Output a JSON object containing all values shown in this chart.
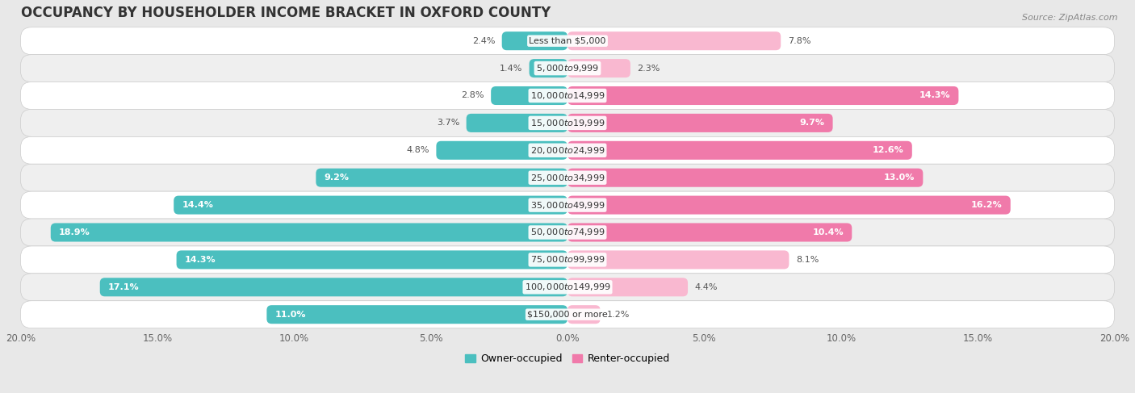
{
  "title": "OCCUPANCY BY HOUSEHOLDER INCOME BRACKET IN OXFORD COUNTY",
  "source": "Source: ZipAtlas.com",
  "categories": [
    "Less than $5,000",
    "$5,000 to $9,999",
    "$10,000 to $14,999",
    "$15,000 to $19,999",
    "$20,000 to $24,999",
    "$25,000 to $34,999",
    "$35,000 to $49,999",
    "$50,000 to $74,999",
    "$75,000 to $99,999",
    "$100,000 to $149,999",
    "$150,000 or more"
  ],
  "owner_values": [
    2.4,
    1.4,
    2.8,
    3.7,
    4.8,
    9.2,
    14.4,
    18.9,
    14.3,
    17.1,
    11.0
  ],
  "renter_values": [
    7.8,
    2.3,
    14.3,
    9.7,
    12.6,
    13.0,
    16.2,
    10.4,
    8.1,
    4.4,
    1.2
  ],
  "owner_color": "#4bbfbf",
  "renter_color": "#f07aaa",
  "renter_color_light": "#f9b8d0",
  "owner_label": "Owner-occupied",
  "renter_label": "Renter-occupied",
  "xlim": 20.0,
  "bar_height": 0.68,
  "bg_color": "#e8e8e8",
  "row_bg_even": "#ffffff",
  "row_bg_odd": "#efefef",
  "title_fontsize": 12,
  "source_fontsize": 8,
  "legend_fontsize": 9,
  "category_fontsize": 8,
  "value_fontsize": 8
}
